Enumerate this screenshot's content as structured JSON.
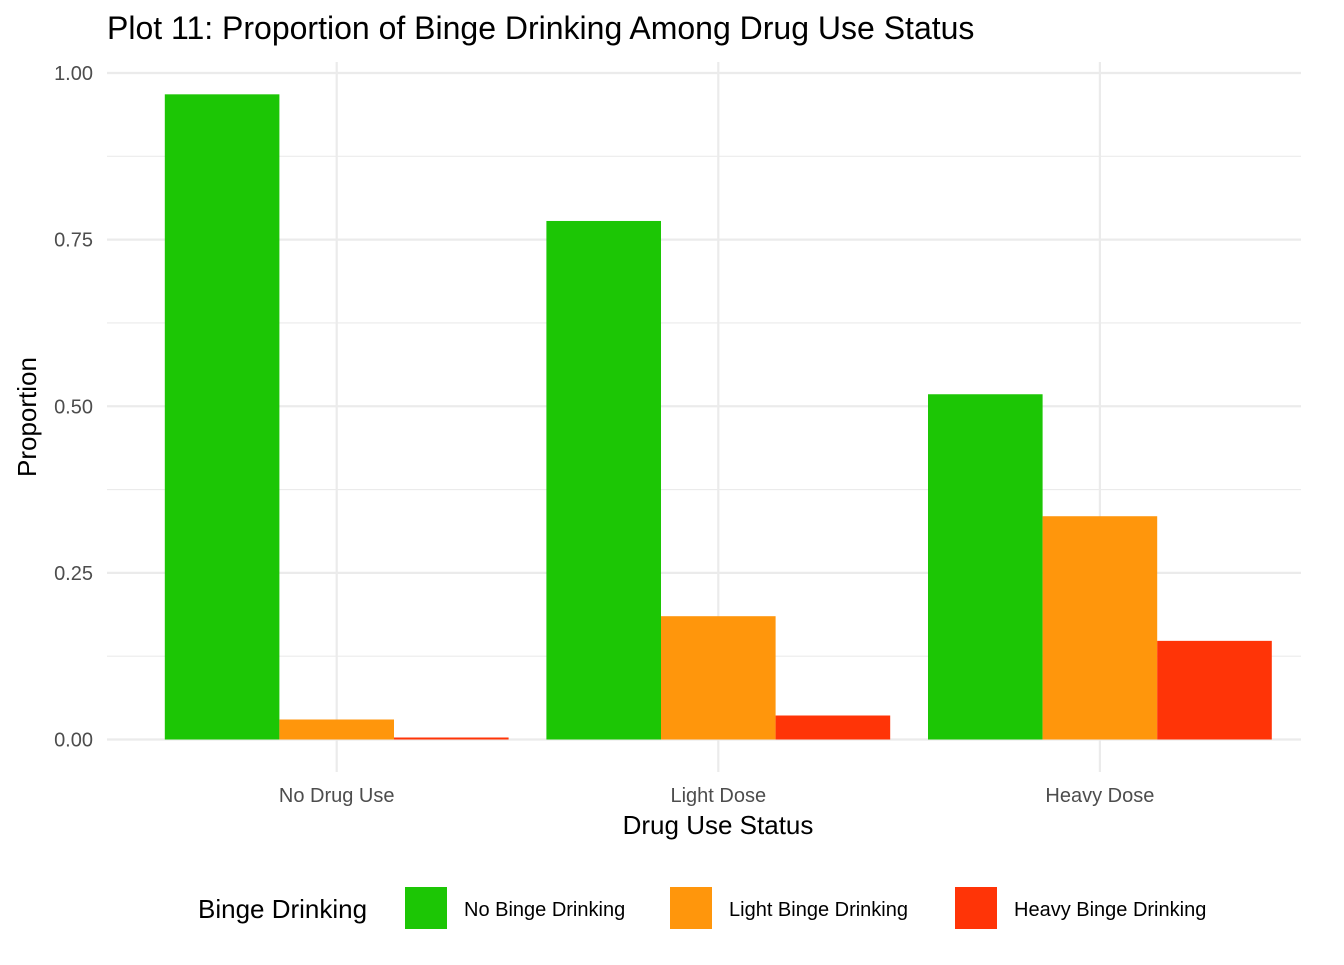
{
  "chart_data": {
    "type": "bar",
    "title": "Plot 11: Proportion of Binge Drinking Among Drug Use Status",
    "xlabel": "Drug Use Status",
    "ylabel": "Proportion",
    "categories": [
      "No Drug Use",
      "Light Dose",
      "Heavy Dose"
    ],
    "series": [
      {
        "name": "No Binge Drinking",
        "color": "#1cc605",
        "values": [
          0.968,
          0.778,
          0.518
        ]
      },
      {
        "name": "Light Binge Drinking",
        "color": "#ff960c",
        "values": [
          0.03,
          0.185,
          0.335
        ]
      },
      {
        "name": "Heavy Binge Drinking",
        "color": "#ff3407",
        "values": [
          0.003,
          0.036,
          0.148
        ]
      }
    ],
    "ylim": [
      0,
      1.0
    ],
    "yticks": [
      0.0,
      0.25,
      0.5,
      0.75,
      1.0
    ],
    "ytick_labels": [
      "0.00",
      "0.25",
      "0.50",
      "0.75",
      "1.00"
    ],
    "grid": true,
    "legend": {
      "title": "Binge Drinking",
      "position": "bottom"
    }
  }
}
